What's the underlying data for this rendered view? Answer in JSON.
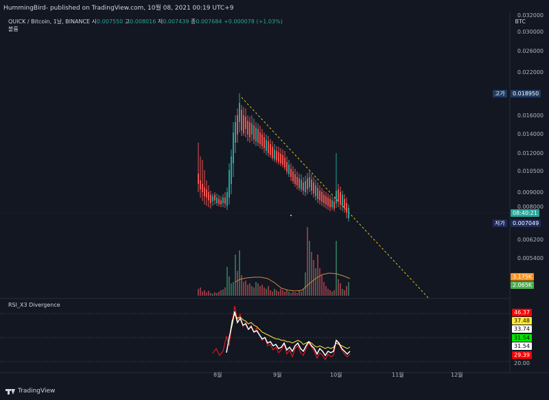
{
  "header": {
    "publish_line": "HummingBird- published on TradingView.com, 10월 08, 2021 00:19 UTC+9"
  },
  "legend": {
    "symbol": "QUICK / Bitcoin, 1날, BINANCE",
    "open_label": "시",
    "open": "0.007550",
    "high_label": "고",
    "high": "0.008016",
    "low_label": "저",
    "low": "0.007439",
    "close_label": "종",
    "close": "0.007684",
    "change": "+0.000078 (+1.03%)",
    "volume_label": "볼륨"
  },
  "price_axis": {
    "currency": "BTC",
    "ticks": [
      "0.032000",
      "0.030000",
      "0.026000",
      "0.022000",
      "0.016000",
      "0.014000",
      "0.012000",
      "0.010500",
      "0.009000",
      "0.008000",
      "0.006200",
      "0.005400"
    ],
    "high_tag_label": "고가",
    "high_tag_value": "0.018950",
    "current_tag": "08:40:21",
    "low_tag_label": "저가",
    "low_tag_value": "0.007049",
    "volume_tag_1": "3.175K",
    "volume_tag_2": "2.065K"
  },
  "rsi": {
    "title": "RSI_X3 Divergence",
    "tags": [
      "46.37",
      "37.48",
      "33.74",
      "31.54",
      "31.54",
      "29.39",
      "20.00"
    ]
  },
  "x_axis": {
    "labels": [
      "8월",
      "9월",
      "10월",
      "11월",
      "12월"
    ]
  },
  "footer": {
    "brand": "TradingView"
  },
  "colors": {
    "background": "#131722",
    "up": "#26a69a",
    "down": "#ef5350",
    "high_tag": "#1e3a5f",
    "low_tag": "#1e2a5a",
    "rsi_red": "#ff0000",
    "rsi_yellow": "#ffeb3b"
  }
}
